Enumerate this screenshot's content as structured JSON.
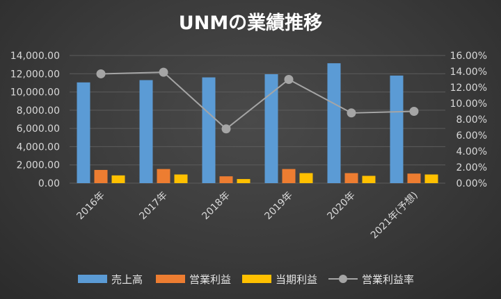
{
  "chart_data": {
    "type": "bar",
    "title": "UNMの業績推移",
    "categories": [
      "2016年",
      "2017年",
      "2018年",
      "2019年",
      "2020年",
      "2021年(予想)"
    ],
    "series": [
      {
        "name": "売上高",
        "type": "bar",
        "axis": "left",
        "color": "#5b9bd5",
        "values": [
          11050,
          11300,
          11600,
          11950,
          13150,
          11800
        ]
      },
      {
        "name": "営業利益",
        "type": "bar",
        "axis": "left",
        "color": "#ed7d31",
        "values": [
          1450,
          1550,
          750,
          1550,
          1100,
          1050
        ]
      },
      {
        "name": "当期利益",
        "type": "bar",
        "axis": "left",
        "color": "#ffc000",
        "values": [
          850,
          950,
          450,
          1100,
          800,
          950
        ]
      },
      {
        "name": "営業利益率",
        "type": "line",
        "axis": "right",
        "color": "#a5a5a5",
        "values": [
          13.7,
          13.9,
          6.8,
          13.0,
          8.8,
          9.0
        ]
      }
    ],
    "y_left": {
      "min": 0,
      "max": 14000,
      "step": 2000,
      "ticks": [
        "0.00",
        "2,000.00",
        "4,000.00",
        "6,000.00",
        "8,000.00",
        "10,000.00",
        "12,000.00",
        "14,000.00"
      ]
    },
    "y_right": {
      "min": 0,
      "max": 16,
      "step": 2,
      "ticks": [
        "0.00%",
        "2.00%",
        "4.00%",
        "6.00%",
        "8.00%",
        "10.00%",
        "12.00%",
        "14.00%",
        "16.00%"
      ]
    },
    "grid": true,
    "legend_position": "bottom"
  }
}
